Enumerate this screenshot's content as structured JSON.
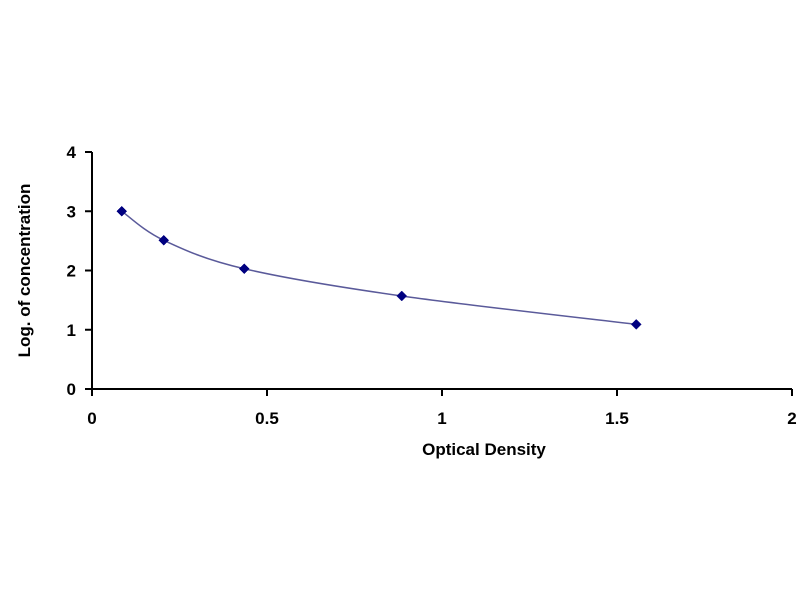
{
  "chart_data": {
    "type": "scatter",
    "title": "",
    "xlabel": "Optical Density",
    "ylabel": "Log. of concentration",
    "xlim": [
      0,
      2
    ],
    "ylim": [
      0,
      4
    ],
    "x_ticks": [
      0,
      0.5,
      1,
      1.5,
      2
    ],
    "x_tick_labels": [
      "0",
      "0.5",
      "1",
      "1.5",
      "2"
    ],
    "y_ticks": [
      0,
      1,
      2,
      3,
      4
    ],
    "y_tick_labels": [
      "0",
      "1",
      "2",
      "3",
      "4"
    ],
    "grid": false,
    "legend": "none",
    "series": [
      {
        "x": [
          0.085,
          0.205,
          0.435,
          0.885,
          1.555
        ],
        "y": [
          3.0,
          2.51,
          2.03,
          1.57,
          1.09
        ],
        "marker": "diamond",
        "smooth_line": true,
        "color": "#000080",
        "line_color": "#5a5a9a"
      }
    ]
  }
}
